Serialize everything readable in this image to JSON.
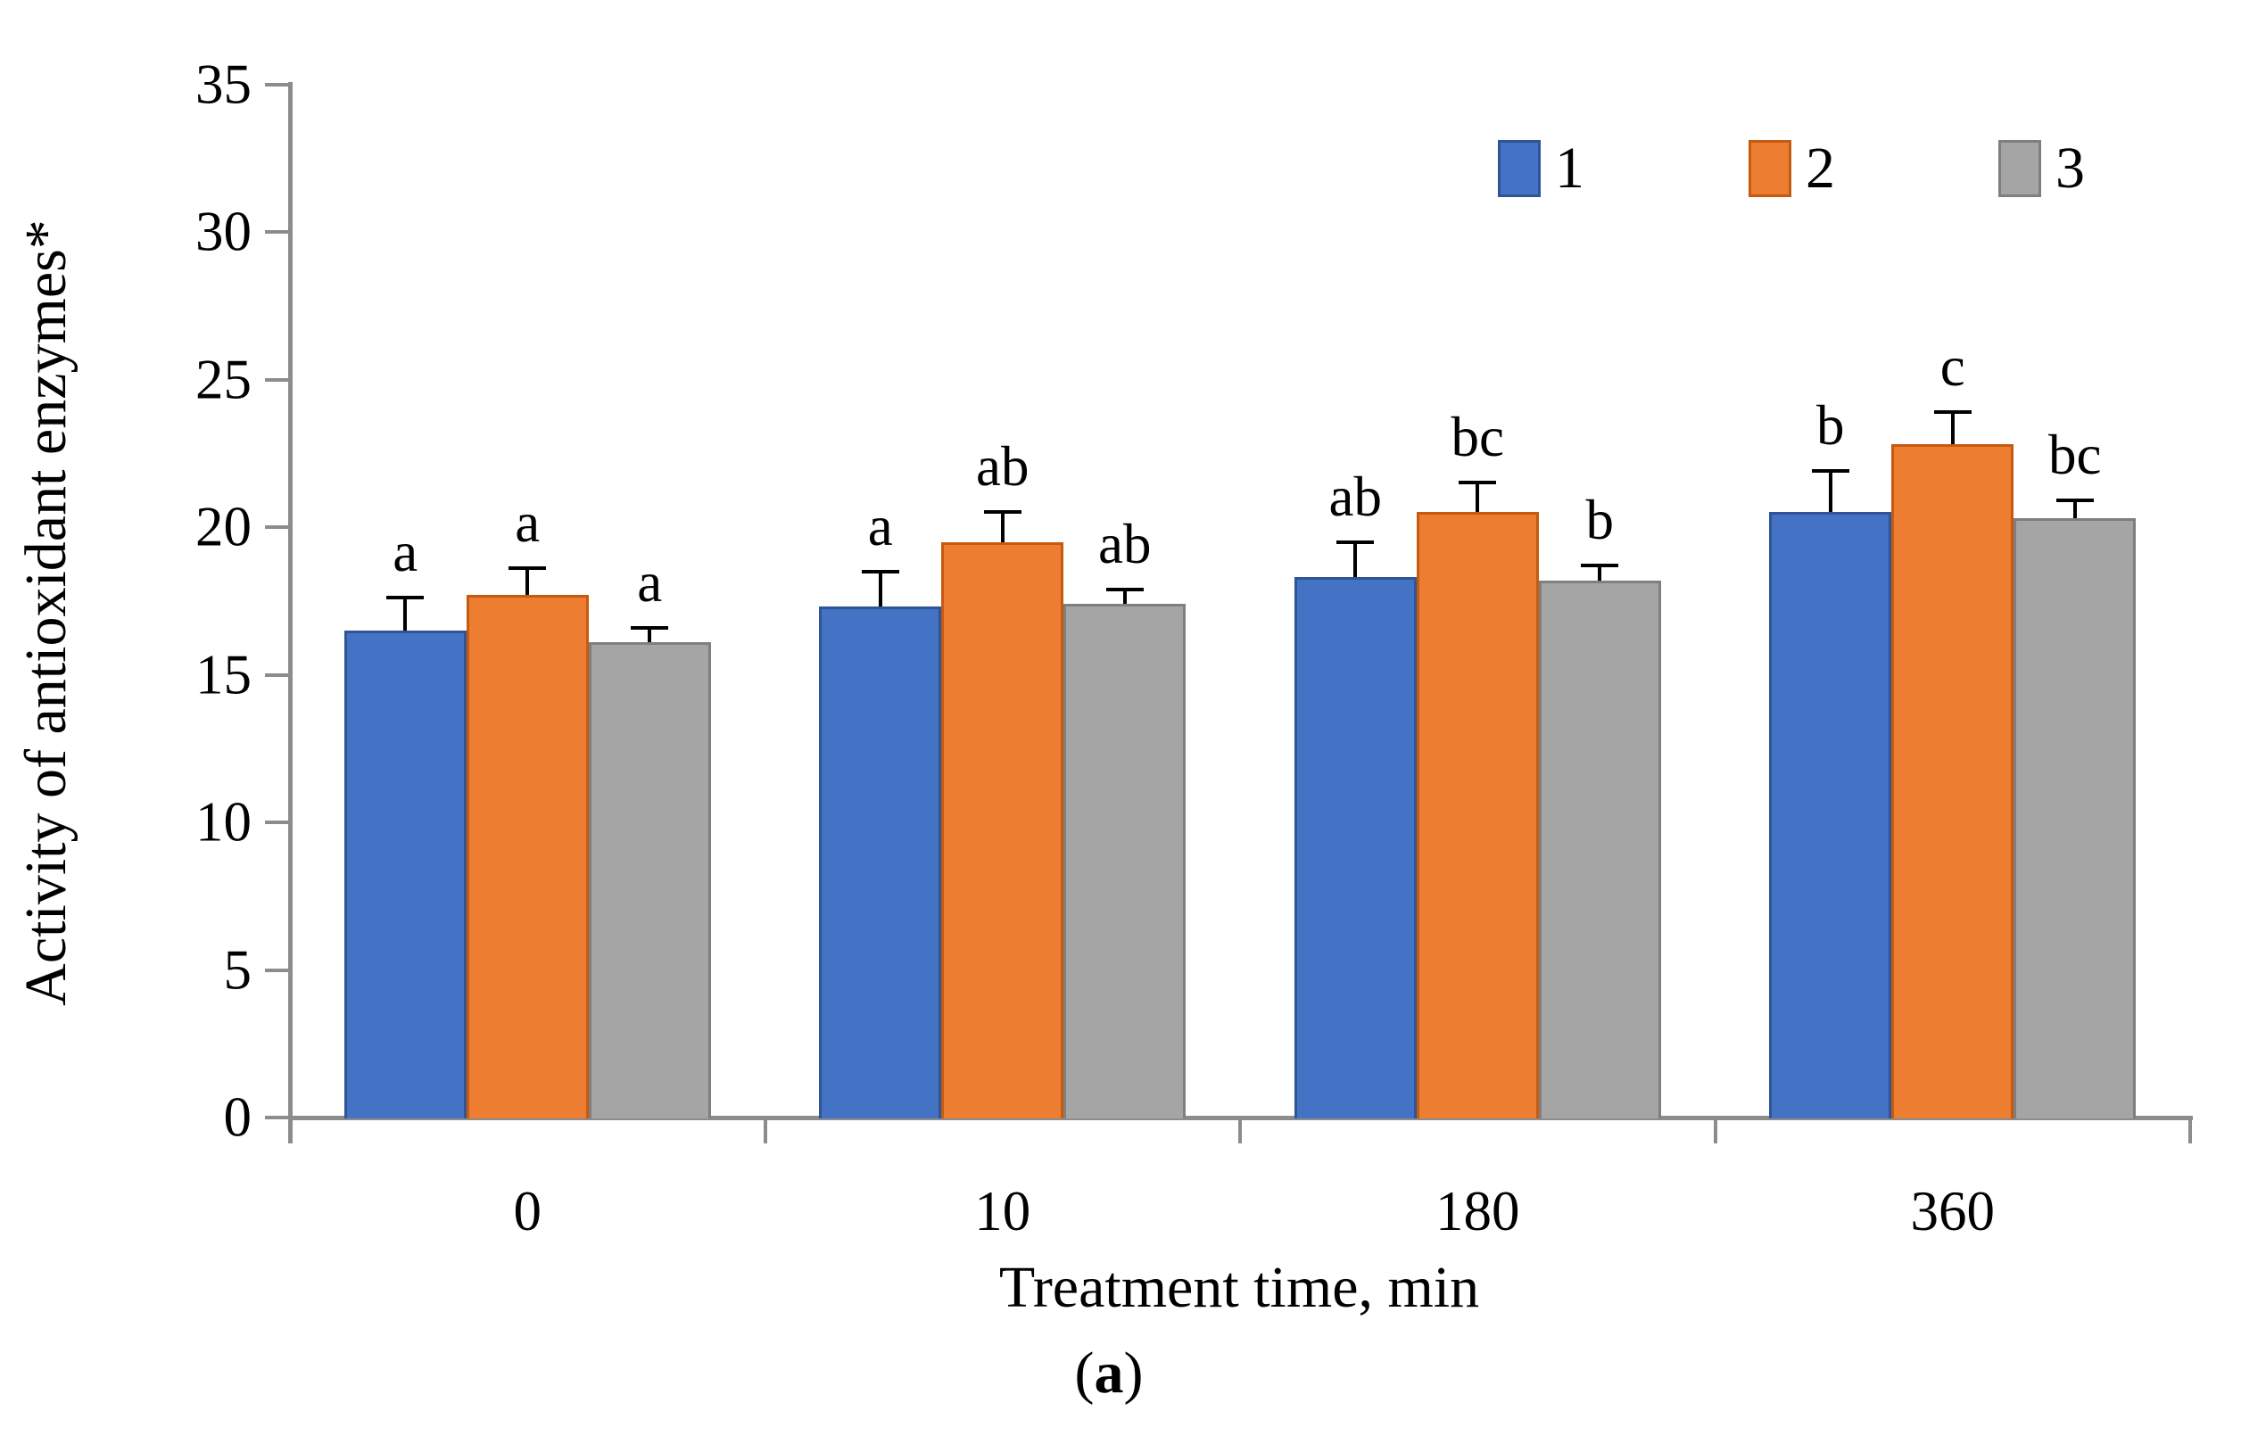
{
  "figure": {
    "caption": {
      "open": "(",
      "letter": "a",
      "close": ")"
    }
  },
  "chart_data": {
    "type": "bar",
    "title": "",
    "xlabel": "Treatment time, min",
    "ylabel": "Activity of antioxidant enzymes*",
    "categories": [
      "0",
      "10",
      "180",
      "360"
    ],
    "ylim": [
      0,
      35
    ],
    "yticks": [
      0,
      5,
      10,
      15,
      20,
      25,
      30,
      35
    ],
    "grid": false,
    "legend_position": "top-right",
    "series": [
      {
        "name": "1",
        "color": "#4472C4",
        "border_color": "#2F5597",
        "values": [
          16.5,
          17.3,
          18.3,
          20.5
        ],
        "errors": [
          1.1,
          1.2,
          1.2,
          1.4
        ],
        "letters": [
          "a",
          "a",
          "ab",
          "b"
        ]
      },
      {
        "name": "2",
        "color": "#ED7D31",
        "border_color": "#C55A11",
        "values": [
          17.7,
          19.5,
          20.5,
          22.8
        ],
        "errors": [
          0.9,
          1.0,
          1.0,
          1.1
        ],
        "letters": [
          "a",
          "ab",
          "bc",
          "c"
        ]
      },
      {
        "name": "3",
        "color": "#A5A5A5",
        "border_color": "#7F7F7F",
        "values": [
          16.1,
          17.4,
          18.2,
          20.3
        ],
        "errors": [
          0.5,
          0.5,
          0.5,
          0.6
        ],
        "letters": [
          "a",
          "ab",
          "b",
          "bc"
        ]
      }
    ],
    "axis_color": "#8C8C8C",
    "error_bar_color": "#000000",
    "text_color": "#000000"
  }
}
